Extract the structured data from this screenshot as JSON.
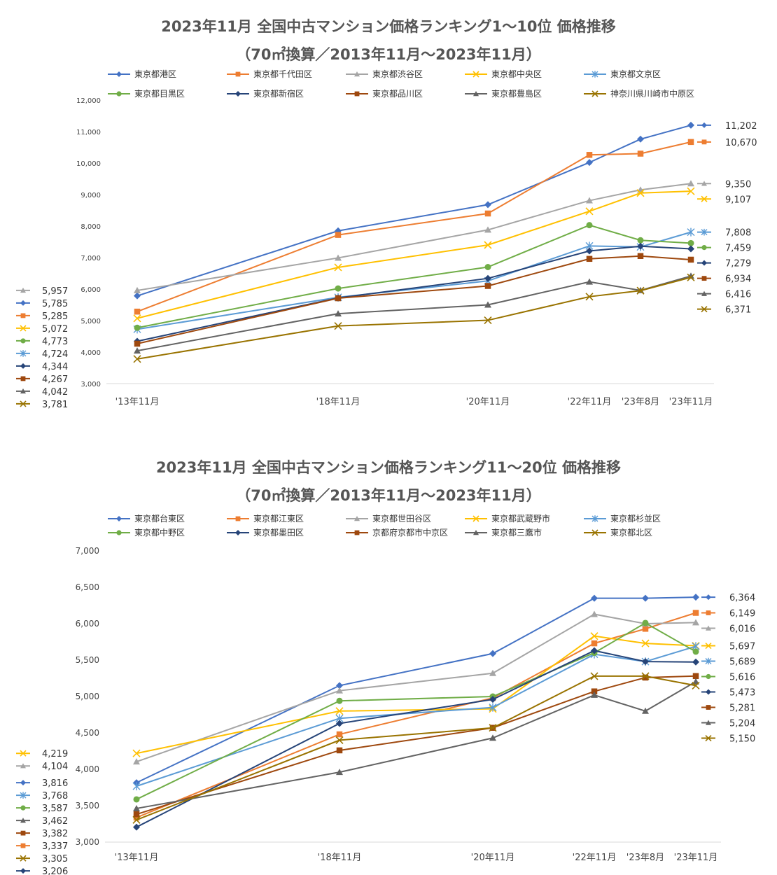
{
  "chart_data": [
    {
      "type": "line",
      "title": "2023年11月 全国中古マンション価格ランキング1～10位 価格推移",
      "subtitle": "（70㎡換算／2013年11月～2023年11月）",
      "categories": [
        "'13年11月",
        "'18年11月",
        "'20年11月",
        "'22年11月",
        "'23年8月",
        "'23年11月"
      ],
      "ylim": [
        3000,
        12000
      ],
      "yticks": [
        "3,000",
        "4,000",
        "5,000",
        "6,000",
        "7,000",
        "8,000",
        "9,000",
        "10,000",
        "11,000",
        "12,000"
      ],
      "grid": false,
      "legend_position": "top",
      "series": [
        {
          "name": "東京都港区",
          "color": "#4472C4",
          "marker": "diamond",
          "values": [
            5785,
            7850,
            8680,
            10020,
            10760,
            11202
          ],
          "start_label": "5,785",
          "end_label": "11,202"
        },
        {
          "name": "東京都千代田区",
          "color": "#ED7D31",
          "marker": "square",
          "values": [
            5285,
            7720,
            8400,
            10260,
            10300,
            10670
          ],
          "start_label": "5,285",
          "end_label": "10,670"
        },
        {
          "name": "東京都渋谷区",
          "color": "#A5A5A5",
          "marker": "triangle",
          "values": [
            5957,
            6990,
            7880,
            8810,
            9150,
            9350
          ],
          "start_label": "5,957",
          "end_label": "9,350"
        },
        {
          "name": "東京都中央区",
          "color": "#FFC000",
          "marker": "x",
          "values": [
            5072,
            6690,
            7400,
            8470,
            9050,
            9107
          ],
          "start_label": "5,072",
          "end_label": "9,107"
        },
        {
          "name": "東京都文京区",
          "color": "#5B9BD5",
          "marker": "star",
          "values": [
            4724,
            5740,
            6260,
            7370,
            7340,
            7808
          ],
          "start_label": "4,724",
          "end_label": "7,808"
        },
        {
          "name": "東京都目黒区",
          "color": "#70AD47",
          "marker": "circle",
          "values": [
            4773,
            6020,
            6700,
            8030,
            7550,
            7459
          ],
          "start_label": "4,773",
          "end_label": "7,459"
        },
        {
          "name": "東京都新宿区",
          "color": "#264478",
          "marker": "diamond",
          "values": [
            4344,
            5720,
            6340,
            7210,
            7360,
            7279
          ],
          "start_label": "4,344",
          "end_label": "7,279"
        },
        {
          "name": "東京都品川区",
          "color": "#9E480E",
          "marker": "square",
          "values": [
            4267,
            5710,
            6100,
            6960,
            7050,
            6934
          ],
          "start_label": "4,267",
          "end_label": "6,934"
        },
        {
          "name": "東京都豊島区",
          "color": "#636363",
          "marker": "triangle",
          "values": [
            4042,
            5220,
            5500,
            6230,
            5960,
            6416
          ],
          "start_label": "4,042",
          "end_label": "6,416"
        },
        {
          "name": "神奈川県川崎市中原区",
          "color": "#997300",
          "marker": "x",
          "values": [
            3781,
            4830,
            5010,
            5760,
            5950,
            6371
          ],
          "start_label": "3,781",
          "end_label": "6,371"
        }
      ]
    },
    {
      "type": "line",
      "title": "2023年11月 全国中古マンション価格ランキング11～20位 価格推移",
      "subtitle": "（70㎡換算／2013年11月～2023年11月）",
      "categories": [
        "'13年11月",
        "'18年11月",
        "'20年11月",
        "'22年11月",
        "'23年8月",
        "'23年11月"
      ],
      "ylim": [
        3000,
        7000
      ],
      "yticks": [
        "3,000",
        "3,500",
        "4,000",
        "4,500",
        "5,000",
        "5,500",
        "6,000",
        "6,500",
        "7,000"
      ],
      "grid": false,
      "legend_position": "top",
      "series": [
        {
          "name": "東京都台東区",
          "color": "#4472C4",
          "marker": "diamond",
          "values": [
            3816,
            5150,
            5590,
            6350,
            6350,
            6364
          ],
          "start_label": "3,816",
          "end_label": "6,364"
        },
        {
          "name": "東京都江東区",
          "color": "#ED7D31",
          "marker": "square",
          "values": [
            3337,
            4480,
            4980,
            5730,
            5930,
            6149
          ],
          "start_label": "3,337",
          "end_label": "6,149"
        },
        {
          "name": "東京都世田谷区",
          "color": "#A5A5A5",
          "marker": "triangle",
          "values": [
            4104,
            5080,
            5320,
            6130,
            6000,
            6016
          ],
          "start_label": "4,104",
          "end_label": "6,016"
        },
        {
          "name": "東京都武蔵野市",
          "color": "#FFC000",
          "marker": "x",
          "values": [
            4219,
            4800,
            4830,
            5830,
            5730,
            5697
          ],
          "start_label": "4,219",
          "end_label": "5,697"
        },
        {
          "name": "東京都杉並区",
          "color": "#5B9BD5",
          "marker": "star",
          "values": [
            3768,
            4700,
            4850,
            5580,
            5480,
            5689
          ],
          "start_label": "3,768",
          "end_label": "5,689"
        },
        {
          "name": "東京都中野区",
          "color": "#70AD47",
          "marker": "circle",
          "values": [
            3587,
            4940,
            5000,
            5600,
            6010,
            5616
          ],
          "start_label": "3,587",
          "end_label": "5,616"
        },
        {
          "name": "東京都墨田区",
          "color": "#264478",
          "marker": "diamond",
          "values": [
            3206,
            4630,
            4960,
            5630,
            5480,
            5473
          ],
          "start_label": "3,206",
          "end_label": "5,473"
        },
        {
          "name": "京都府京都市中京区",
          "color": "#9E480E",
          "marker": "square",
          "values": [
            3382,
            4260,
            4570,
            5070,
            5260,
            5281
          ],
          "start_label": "3,382",
          "end_label": "5,281"
        },
        {
          "name": "東京都三鷹市",
          "color": "#636363",
          "marker": "triangle",
          "values": [
            3462,
            3960,
            4430,
            5020,
            4800,
            5204
          ],
          "start_label": "3,462",
          "end_label": "5,204"
        },
        {
          "name": "東京都北区",
          "color": "#997300",
          "marker": "x",
          "values": [
            3305,
            4400,
            4570,
            5280,
            5280,
            5150
          ],
          "start_label": "3,305",
          "end_label": "5,150"
        }
      ]
    }
  ]
}
